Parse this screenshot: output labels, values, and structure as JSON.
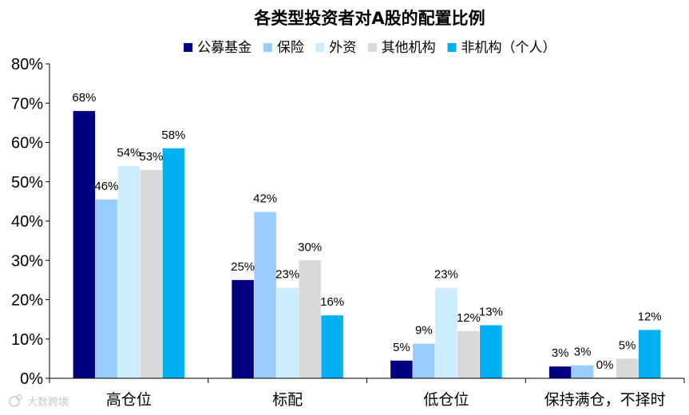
{
  "chart_data": {
    "type": "bar",
    "title": "各类型投资者对A股的配置比例",
    "categories": [
      "高仓位",
      "标配",
      "低仓位",
      "保持满仓，不择时"
    ],
    "series": [
      {
        "name": "公募基金",
        "color": "#000080",
        "values": [
          68,
          25,
          5,
          3
        ]
      },
      {
        "name": "保险",
        "color": "#99CCFF",
        "values": [
          46,
          42,
          9,
          3
        ]
      },
      {
        "name": "外资",
        "color": "#CCECFF",
        "values": [
          54,
          23,
          23,
          0
        ]
      },
      {
        "name": "其他机构",
        "color": "#D9D9D9",
        "values": [
          53,
          30,
          12,
          5
        ]
      },
      {
        "name": "非机构（个人）",
        "color": "#00B0F0",
        "values": [
          58,
          16,
          13,
          12
        ]
      }
    ],
    "bar_values": [
      [
        68,
        25,
        4.5,
        3
      ],
      [
        45.5,
        42.3,
        8.8,
        3.3
      ],
      [
        54,
        23,
        23,
        0
      ],
      [
        53,
        30,
        12,
        5
      ],
      [
        58.5,
        16,
        13.5,
        12.3
      ]
    ],
    "ylim": [
      0,
      80
    ],
    "yticks": [
      "0%",
      "10%",
      "20%",
      "30%",
      "40%",
      "50%",
      "60%",
      "70%",
      "80%"
    ],
    "value_suffix": "%",
    "legend_position": "top",
    "grid": false
  },
  "watermark": "大数跨境"
}
